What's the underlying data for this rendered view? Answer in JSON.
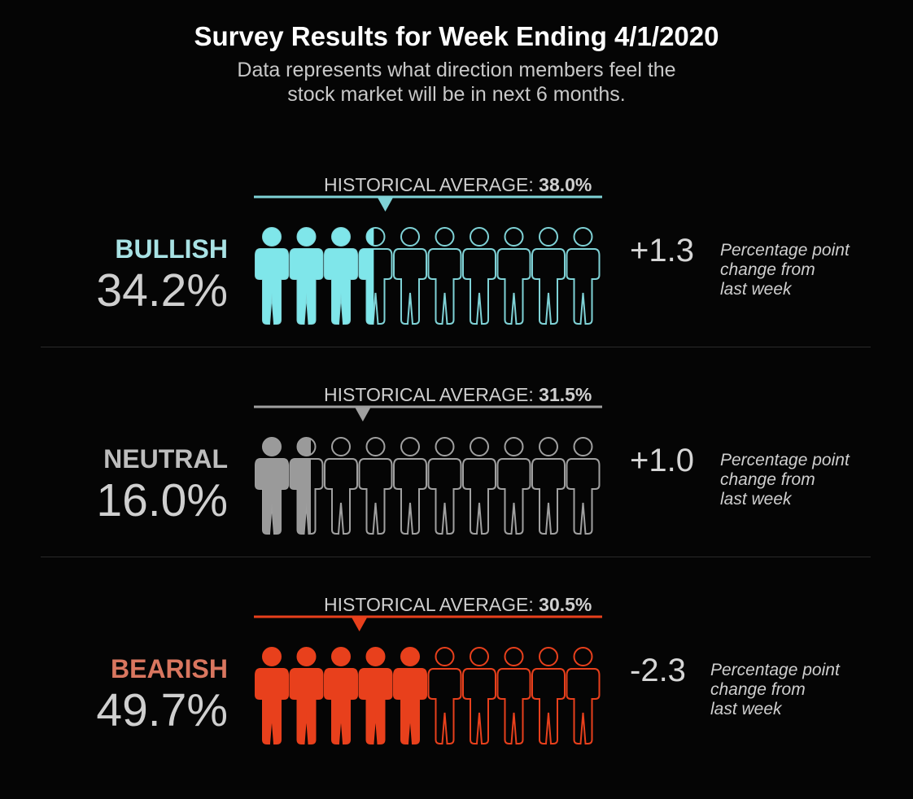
{
  "title": "Survey Results for Week Ending 4/1/2020",
  "subtitle_line1": "Data represents what direction members feel the",
  "subtitle_line2": "stock market will be in next 6 months.",
  "chart_data": {
    "type": "pictograph",
    "icons_per_row": 10,
    "scale_max": 100,
    "categories": [
      {
        "name": "BULLISH",
        "value": 34.2,
        "value_label": "34.2%",
        "historical_average": 38.0,
        "historical_label": "HISTORICAL AVERAGE:",
        "historical_value_label": "38.0%",
        "change": 1.3,
        "change_label": "+1.3",
        "change_note": [
          "Percentage point",
          "change from",
          "last week"
        ],
        "color": "#7fe6ea",
        "label_color": "#a8e2e4",
        "outline_color": "#7fd2d6"
      },
      {
        "name": "NEUTRAL",
        "value": 16.0,
        "value_label": "16.0%",
        "historical_average": 31.5,
        "historical_label": "HISTORICAL AVERAGE:",
        "historical_value_label": "31.5%",
        "change": 1.0,
        "change_label": "+1.0",
        "change_note": [
          "Percentage point",
          "change from",
          "last week"
        ],
        "color": "#9a9a9a",
        "label_color": "#bdbdbd",
        "outline_color": "#a0a0a0"
      },
      {
        "name": "BEARISH",
        "value": 49.7,
        "value_label": "49.7%",
        "historical_average": 30.5,
        "historical_label": "HISTORICAL AVERAGE:",
        "historical_value_label": "30.5%",
        "change": -2.3,
        "change_label": "-2.3",
        "change_note": [
          "Percentage point",
          "change from",
          "last week"
        ],
        "color": "#e8401c",
        "label_color": "#d9765f",
        "outline_color": "#e8401c"
      }
    ]
  }
}
